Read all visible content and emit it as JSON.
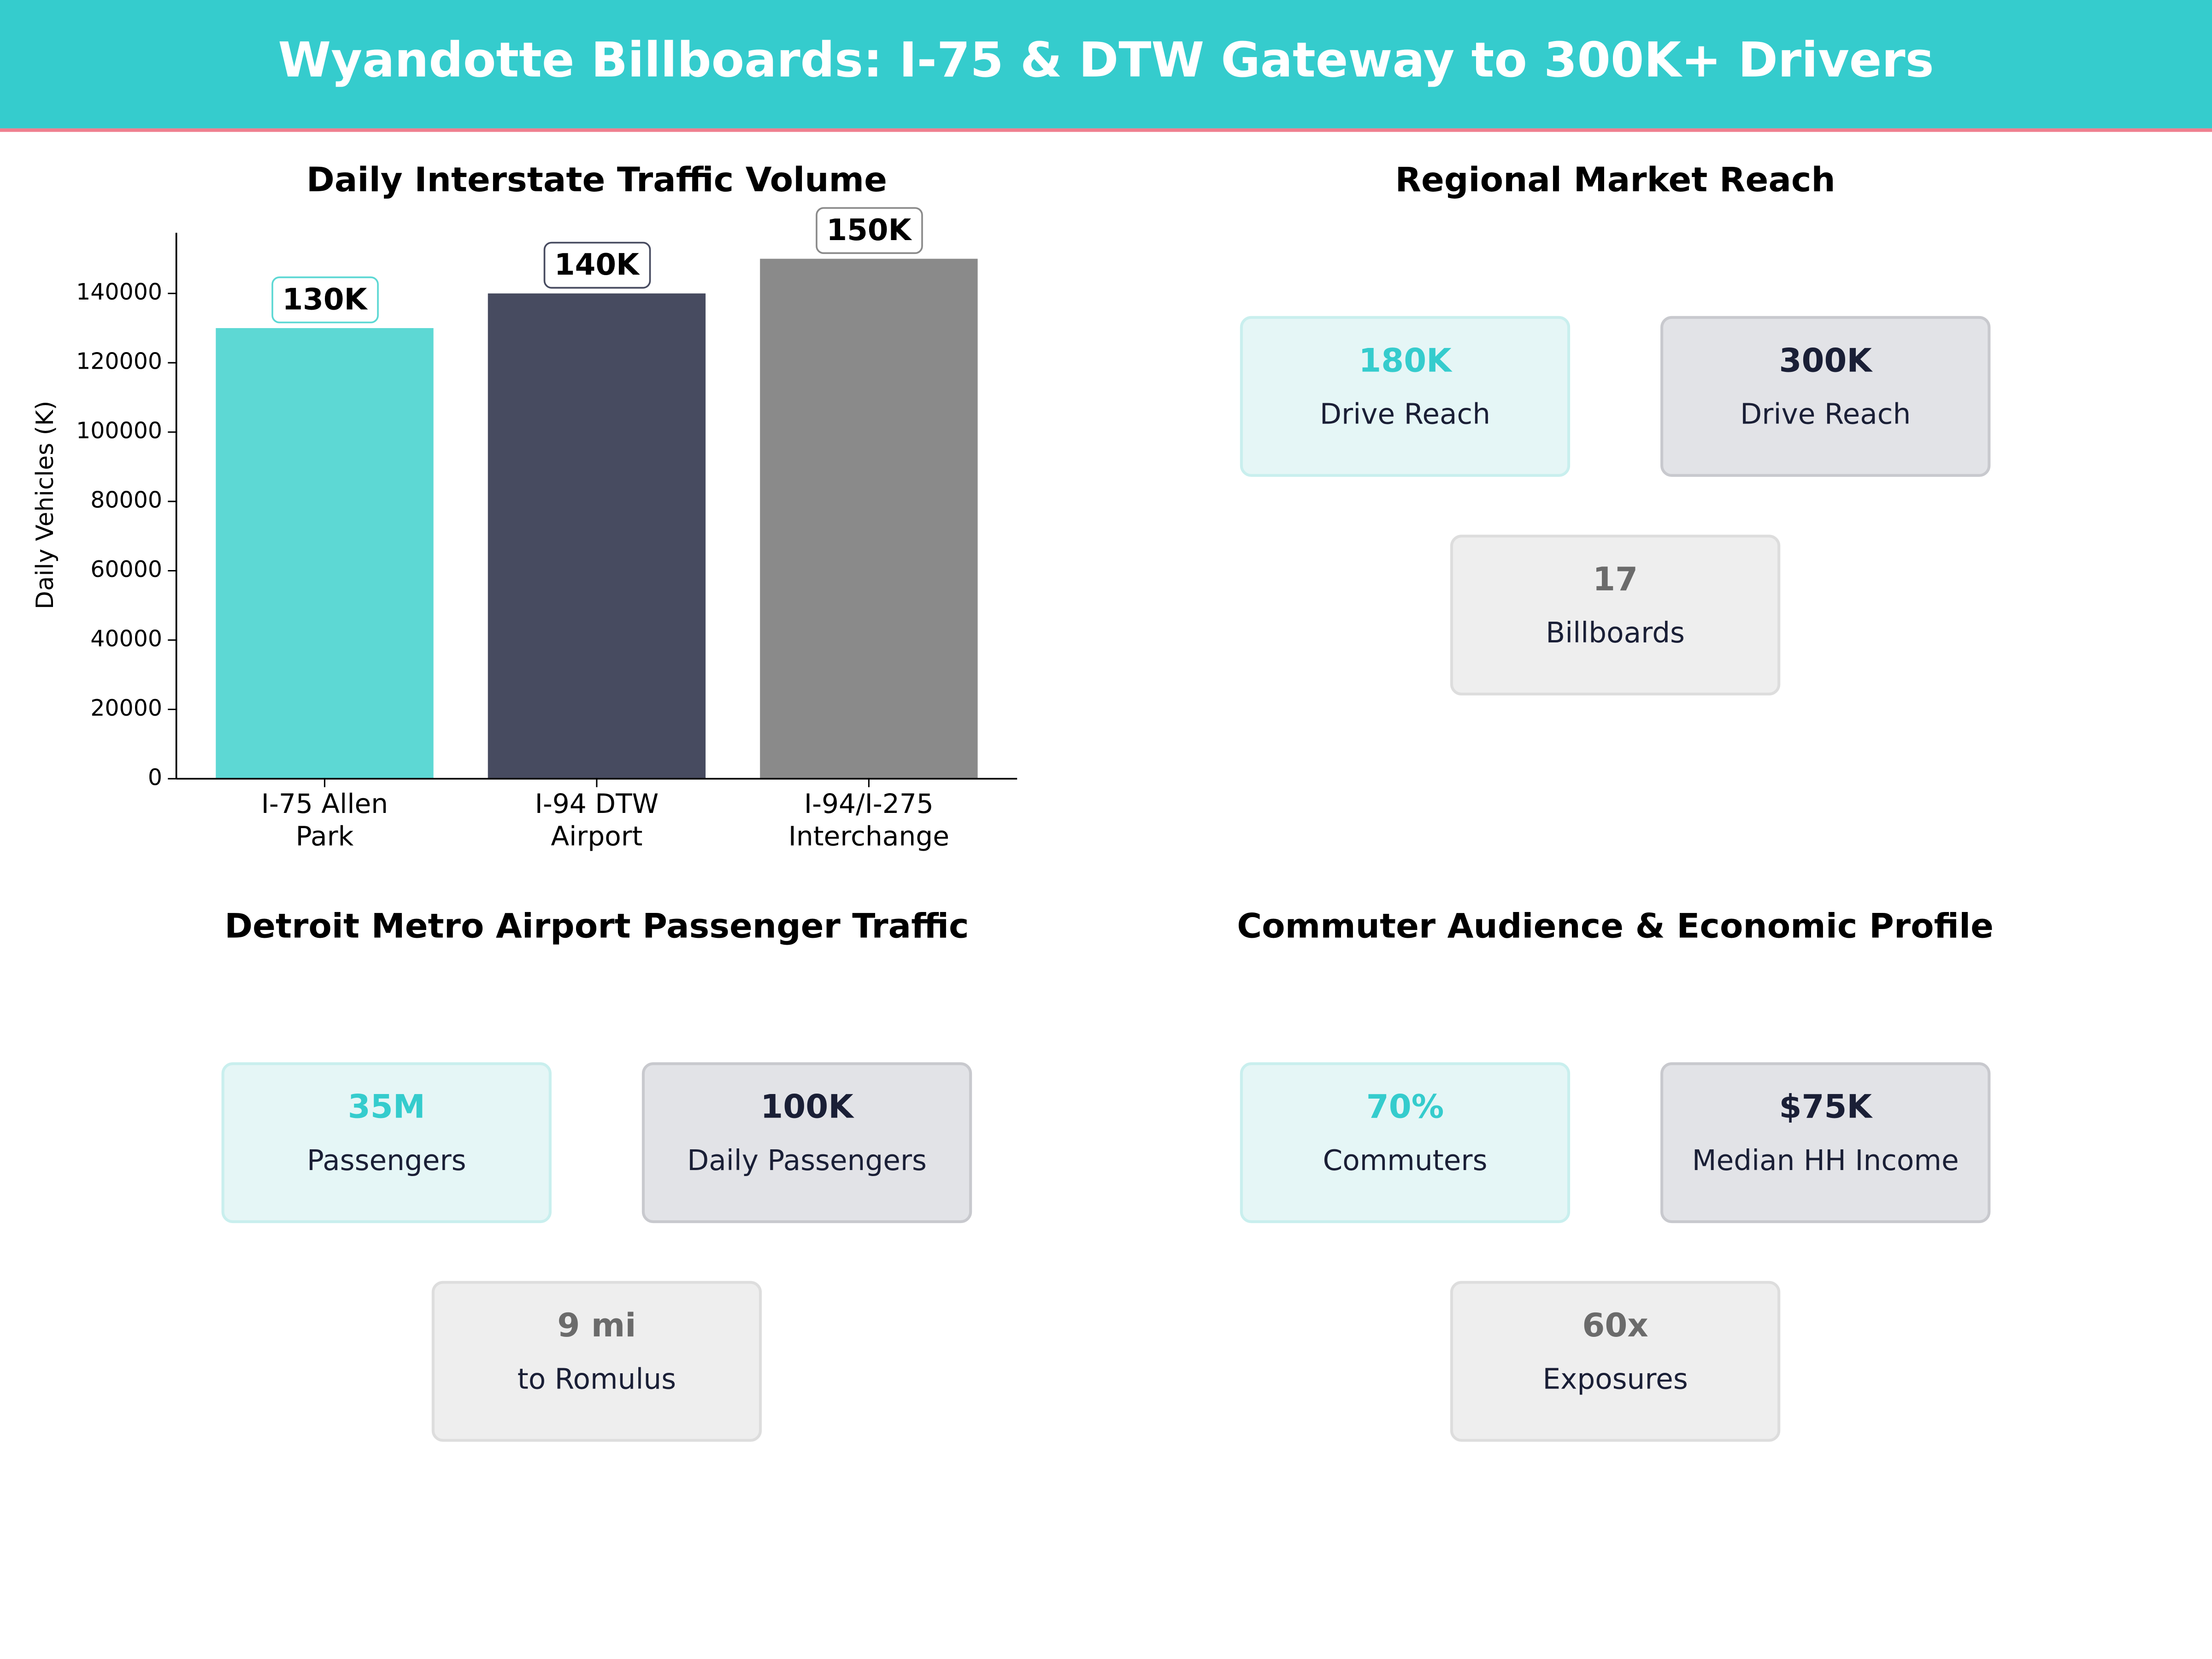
{
  "title": "Wyandotte Billboards: I-75 & DTW Gateway to 300K+ Drivers",
  "chart_data": {
    "type": "bar",
    "title": "Daily Interstate Traffic Volume",
    "y_label": "Daily Vehicles (K)",
    "categories": [
      "I-75 Allen Park",
      "I-94 DTW Airport",
      "I-94/I-275 Interchange"
    ],
    "values": [
      130000,
      140000,
      150000
    ],
    "value_labels": [
      "130K",
      "140K",
      "150K"
    ],
    "colors": [
      "#5dd8d4",
      "#474b60",
      "#8a8a8a"
    ],
    "ylim": [
      0,
      157500
    ],
    "yticks": [
      0,
      20000,
      40000,
      60000,
      80000,
      100000,
      120000,
      140000
    ]
  },
  "panels": [
    {
      "title": "Regional Market Reach",
      "cards": [
        {
          "value": "180K",
          "label": "Drive Reach"
        },
        {
          "value": "300K",
          "label": "Drive Reach"
        },
        {
          "value": "17",
          "label": "Billboards"
        }
      ]
    },
    {
      "title": "Detroit Metro Airport Passenger Traffic",
      "cards": [
        {
          "value": "35M",
          "label": "Passengers"
        },
        {
          "value": "100K",
          "label": "Daily Passengers"
        },
        {
          "value": "9 mi",
          "label": "to Romulus"
        }
      ]
    },
    {
      "title": "Commuter Audience & Economic Profile",
      "cards": [
        {
          "value": "70%",
          "label": "Commuters"
        },
        {
          "value": "$75K",
          "label": "Median HH Income"
        },
        {
          "value": "60x",
          "label": "Exposures"
        }
      ]
    }
  ]
}
